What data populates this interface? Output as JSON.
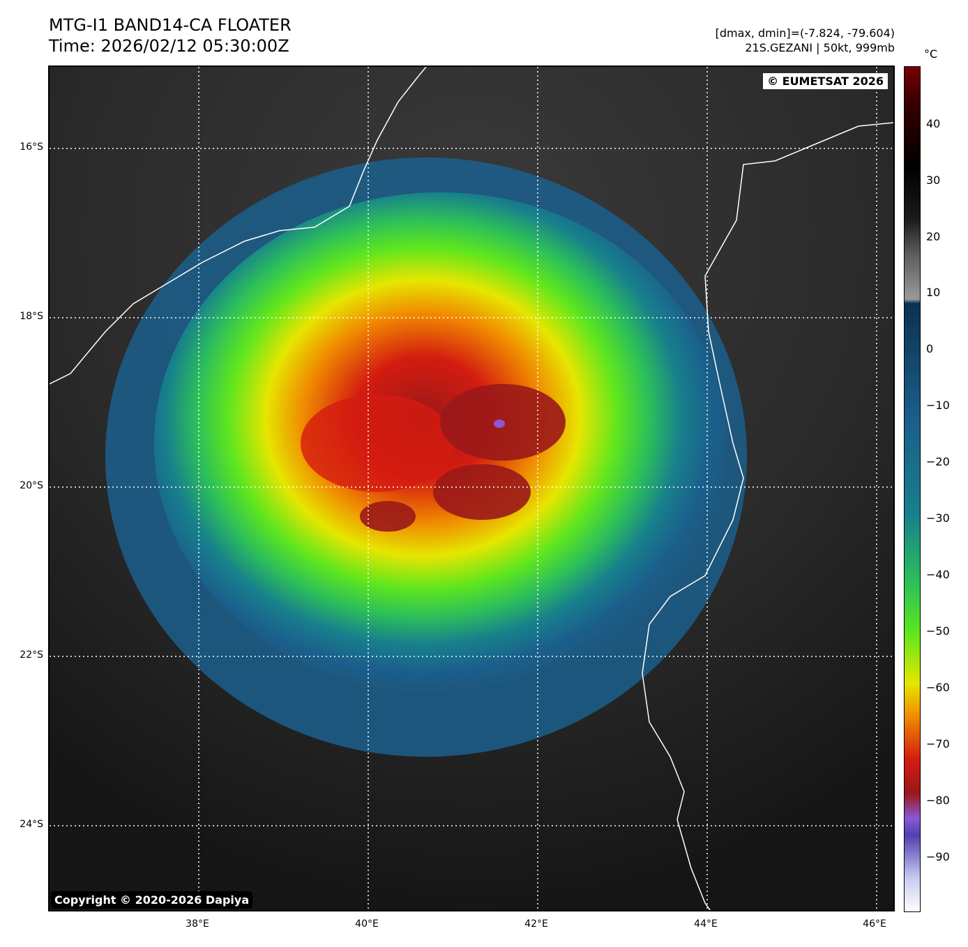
{
  "header": {
    "title_line1": "MTG-I1 BAND14-CA FLOATER",
    "title_line2": "Time: 2026/02/12 05:30:00Z",
    "range_text": "[dmax, dmin]=(-7.824, -79.604)",
    "storm_text": "21S.GEZANI | 50kt, 999mb"
  },
  "badges": {
    "eumetsat": "© EUMETSAT 2026",
    "dapiya": "Copyright © 2020-2026 Dapiya"
  },
  "latitude_labels": [
    "16°S",
    "18°S",
    "20°S",
    "22°S",
    "24°S"
  ],
  "longitude_labels": [
    "38°E",
    "40°E",
    "42°E",
    "44°E",
    "46°E"
  ],
  "colorbar": {
    "unit": "°C",
    "ticks": [
      "40",
      "30",
      "20",
      "10",
      "0",
      "−10",
      "−20",
      "−30",
      "−40",
      "−50",
      "−60",
      "−70",
      "−80",
      "−90"
    ],
    "colors": {
      "top": "#7a0000",
      "warm_black": "#000000",
      "gray": "#9a9a9a",
      "blue_dark": "#0c3150",
      "blue": "#1b5f8c",
      "teal": "#17808c",
      "green": "#2dbf5a",
      "lime": "#5ee61e",
      "yellow": "#e6e600",
      "orange": "#f08a00",
      "red": "#d41c10",
      "dark_red": "#9a1818",
      "purple": "#8a58d6",
      "bottom": "#ffffff"
    }
  }
}
